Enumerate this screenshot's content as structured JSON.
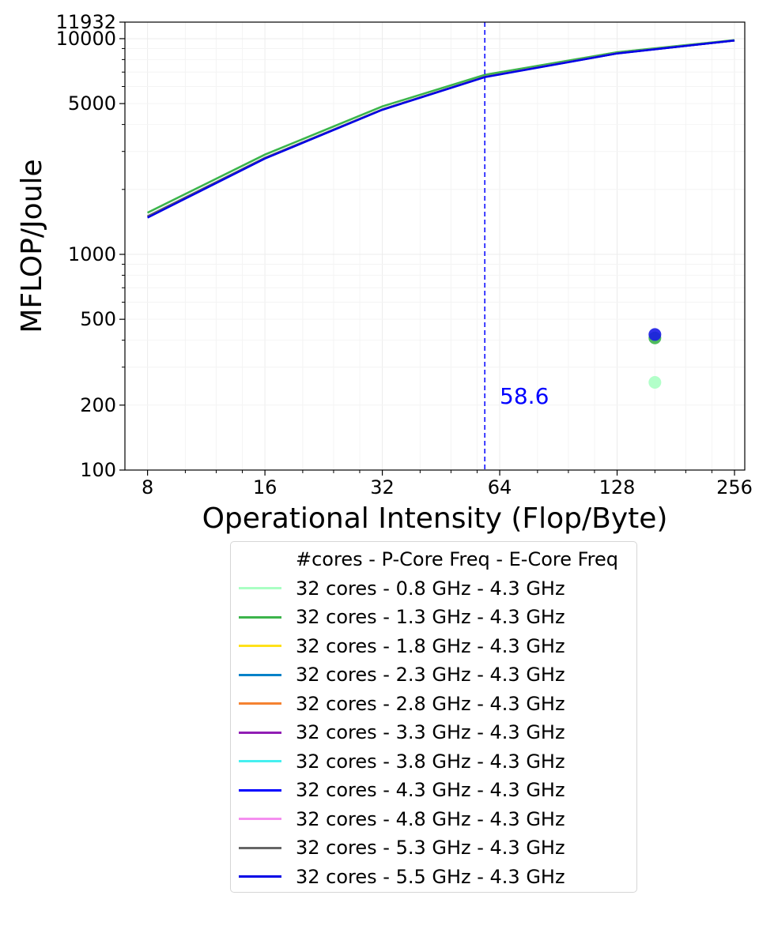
{
  "chart_data": {
    "type": "line",
    "xlabel": "Operational Intensity (Flop/Byte)",
    "ylabel": "MFLOP/Joule",
    "x_scale": "log2",
    "y_scale": "log10",
    "xlim": [
      7,
      272
    ],
    "ylim": [
      100,
      11932
    ],
    "x_ticks": [
      8,
      16,
      32,
      64,
      128,
      256
    ],
    "x_tick_labels": [
      "8",
      "16",
      "32",
      "64",
      "128",
      "256"
    ],
    "y_ticks": [
      100,
      200,
      500,
      1000,
      5000,
      10000,
      11932
    ],
    "y_tick_labels": [
      "100",
      "200",
      "500",
      "1000",
      "5000",
      "10000",
      "11932"
    ],
    "grid": true,
    "legend_title": "#cores - P-Core Freq - E-Core Freq",
    "legend_position": "below-plot",
    "series": [
      {
        "name": "32 cores - 0.8 GHz - 4.3 GHz",
        "color": "#aaffc3",
        "x": [
          8,
          16,
          32,
          58.6,
          128,
          256
        ],
        "y": [
          1560,
          2900,
          4850,
          6800,
          8650,
          9850
        ]
      },
      {
        "name": "32 cores - 1.3 GHz - 4.3 GHz",
        "color": "#3cb44b",
        "x": [
          8,
          16,
          32,
          58.6,
          128,
          256
        ],
        "y": [
          1560,
          2900,
          4850,
          6800,
          8650,
          9850
        ]
      },
      {
        "name": "32 cores - 1.8 GHz - 4.3 GHz",
        "color": "#ffe119",
        "x": [
          8,
          16,
          32,
          58.6,
          128,
          256
        ],
        "y": [
          1500,
          2800,
          4700,
          6650,
          8550,
          9800
        ]
      },
      {
        "name": "32 cores - 2.3 GHz - 4.3 GHz",
        "color": "#0082c8",
        "x": [
          8,
          16,
          32,
          58.6,
          128,
          256
        ],
        "y": [
          1500,
          2800,
          4700,
          6650,
          8550,
          9800
        ]
      },
      {
        "name": "32 cores - 2.8 GHz - 4.3 GHz",
        "color": "#f58231",
        "x": [
          8,
          16,
          32,
          58.6,
          128,
          256
        ],
        "y": [
          1500,
          2800,
          4700,
          6650,
          8550,
          9800
        ]
      },
      {
        "name": "32 cores - 3.3 GHz - 4.3 GHz",
        "color": "#911eb4",
        "x": [
          8,
          16,
          32,
          58.6,
          128,
          256
        ],
        "y": [
          1500,
          2800,
          4700,
          6650,
          8550,
          9800
        ]
      },
      {
        "name": "32 cores - 3.8 GHz - 4.3 GHz",
        "color": "#46f0f0",
        "x": [
          8,
          16,
          32,
          58.6,
          128,
          256
        ],
        "y": [
          1500,
          2800,
          4700,
          6650,
          8550,
          9800
        ]
      },
      {
        "name": "32 cores - 4.3 GHz - 4.3 GHz",
        "color": "#0000ff",
        "x": [
          8,
          16,
          32,
          58.6,
          128,
          256
        ],
        "y": [
          1500,
          2800,
          4700,
          6650,
          8550,
          9800
        ]
      },
      {
        "name": "32 cores - 4.8 GHz - 4.3 GHz",
        "color": "#f58ff0",
        "x": [
          8,
          16,
          32,
          58.6,
          128,
          256
        ],
        "y": [
          1500,
          2800,
          4700,
          6650,
          8550,
          9800
        ]
      },
      {
        "name": "32 cores - 5.3 GHz - 4.3 GHz",
        "color": "#666666",
        "x": [
          8,
          16,
          32,
          58.6,
          128,
          256
        ],
        "y": [
          1500,
          2800,
          4700,
          6650,
          8550,
          9800
        ]
      },
      {
        "name": "32 cores - 5.5 GHz - 4.3 GHz",
        "color": "#0000e6",
        "x": [
          8,
          16,
          32,
          58.6,
          128,
          256
        ],
        "y": [
          1480,
          2780,
          4680,
          6630,
          8540,
          9800
        ]
      }
    ],
    "points": [
      {
        "x": 160,
        "y": 255,
        "color": "#aaffc3"
      },
      {
        "x": 160,
        "y": 410,
        "color": "#3cb44b"
      },
      {
        "x": 160,
        "y": 425,
        "color": "#1a1ae6"
      }
    ],
    "vline": {
      "x": 58.6,
      "color": "#0000ff",
      "style": "dashed"
    },
    "annotation": {
      "text": "58.6",
      "x": 64,
      "y": 200,
      "color": "#0000ff"
    }
  }
}
